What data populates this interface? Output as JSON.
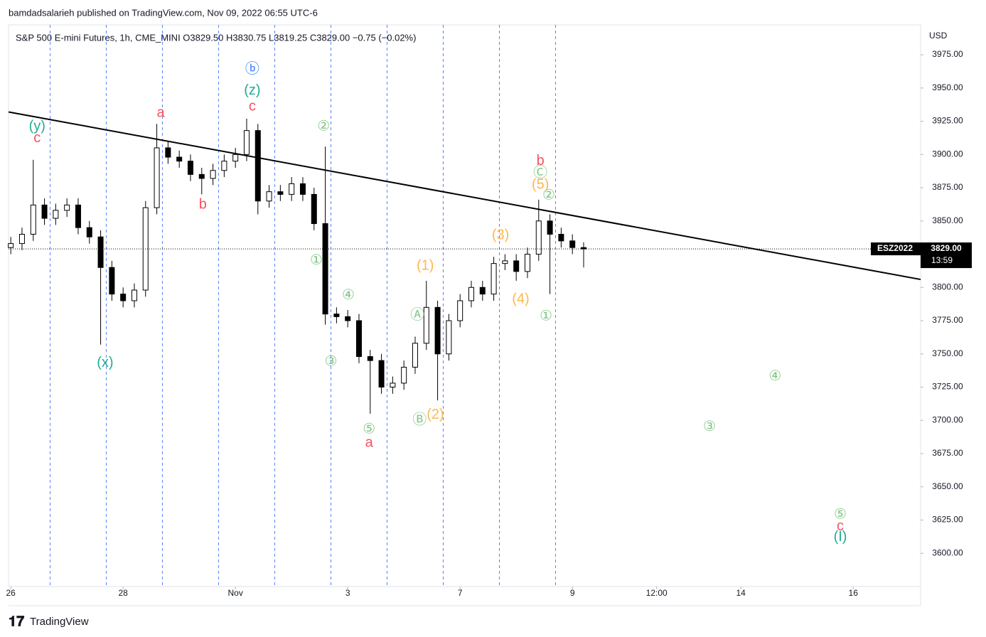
{
  "header": {
    "publisher": "bamdadsalarieh published on TradingView.com, Nov 09, 2022 06:55 UTC-6",
    "legend": "S&P 500 E-mini Futures, 1h, CME_MINI  O3829.50  H3830.75  L3819.25  C3829.00  −0.75 (−0.02%)",
    "currency": "USD"
  },
  "footer": {
    "brand": "TradingView"
  },
  "chart_data": {
    "type": "candlestick",
    "x": [
      0,
      0.2,
      0.4,
      0.6,
      0.8,
      1,
      1.2,
      1.4,
      1.6,
      1.8,
      2,
      2.2,
      2.4,
      2.6,
      2.8,
      3,
      3.2,
      3.4,
      3.6,
      3.8,
      4,
      4.2,
      4.4,
      4.6,
      4.8,
      5,
      5.2,
      5.4,
      5.6,
      5.8,
      6,
      6.2,
      6.4,
      6.6,
      6.8,
      7,
      7.2,
      7.4,
      7.6,
      7.8,
      8,
      8.2,
      8.4,
      8.6,
      8.8,
      9,
      9.2,
      9.4,
      9.6,
      9.8,
      10,
      10.2
    ],
    "open": [
      3830,
      3833,
      3840,
      3862,
      3852,
      3858,
      3862,
      3845,
      3838,
      3815,
      3795,
      3790,
      3798,
      3860,
      3905,
      3898,
      3895,
      3885,
      3882,
      3888,
      3895,
      3900,
      3918,
      3865,
      3872,
      3870,
      3878,
      3870,
      3848,
      3780,
      3778,
      3775,
      3748,
      3745,
      3725,
      3728,
      3740,
      3758,
      3785,
      3750,
      3775,
      3790,
      3800,
      3795,
      3818,
      3820,
      3812,
      3825,
      3850,
      3840,
      3835,
      3830
    ],
    "high": [
      3838,
      3845,
      3896,
      3867,
      3863,
      3867,
      3867,
      3850,
      3843,
      3820,
      3800,
      3803,
      3865,
      3923,
      3910,
      3903,
      3900,
      3890,
      3893,
      3900,
      3905,
      3927,
      3923,
      3877,
      3877,
      3883,
      3883,
      3875,
      3906,
      3785,
      3783,
      3780,
      3753,
      3750,
      3733,
      3745,
      3763,
      3805,
      3790,
      3780,
      3795,
      3805,
      3805,
      3823,
      3825,
      3825,
      3830,
      3866,
      3855,
      3845,
      3840,
      3834
    ],
    "low": [
      3825,
      3828,
      3835,
      3847,
      3847,
      3853,
      3840,
      3833,
      3757,
      3790,
      3785,
      3785,
      3793,
      3855,
      3893,
      3890,
      3880,
      3870,
      3877,
      3883,
      3890,
      3895,
      3855,
      3860,
      3865,
      3865,
      3865,
      3843,
      3772,
      3773,
      3770,
      3743,
      3705,
      3720,
      3720,
      3723,
      3735,
      3753,
      3715,
      3745,
      3770,
      3785,
      3790,
      3790,
      3813,
      3805,
      3807,
      3820,
      3795,
      3830,
      3825,
      3815
    ],
    "close": [
      3833,
      3840,
      3862,
      3852,
      3858,
      3862,
      3845,
      3838,
      3815,
      3795,
      3790,
      3798,
      3860,
      3905,
      3898,
      3895,
      3885,
      3882,
      3888,
      3895,
      3900,
      3918,
      3865,
      3872,
      3870,
      3878,
      3870,
      3848,
      3780,
      3778,
      3775,
      3748,
      3745,
      3725,
      3728,
      3740,
      3758,
      3785,
      3750,
      3775,
      3790,
      3800,
      3795,
      3818,
      3820,
      3812,
      3825,
      3850,
      3840,
      3835,
      3830,
      3829
    ],
    "xlim": [
      -0.04,
      16.2
    ],
    "xticks": [
      {
        "value": 0,
        "label": "26"
      },
      {
        "value": 2,
        "label": "28"
      },
      {
        "value": 4,
        "label": "Nov"
      },
      {
        "value": 6,
        "label": "3"
      },
      {
        "value": 8,
        "label": "7"
      },
      {
        "value": 10,
        "label": "9"
      },
      {
        "value": 11.5,
        "label": "12:00"
      },
      {
        "value": 13,
        "label": "14"
      },
      {
        "value": 15,
        "label": "16"
      }
    ],
    "ylim": [
      3575,
      3997.5
    ],
    "yticks": [
      {
        "value": 3600,
        "label": "3600.00"
      },
      {
        "value": 3625,
        "label": "3625.00"
      },
      {
        "value": 3650,
        "label": "3650.00"
      },
      {
        "value": 3675,
        "label": "3675.00"
      },
      {
        "value": 3700,
        "label": "3700.00"
      },
      {
        "value": 3725,
        "label": "3725.00"
      },
      {
        "value": 3750,
        "label": "3750.00"
      },
      {
        "value": 3775,
        "label": "3775.00"
      },
      {
        "value": 3800,
        "label": "3800.00"
      },
      {
        "value": 3825,
        "label": "3825.00"
      },
      {
        "value": 3850,
        "label": "3850.00"
      },
      {
        "value": 3875,
        "label": "3875.00"
      },
      {
        "value": 3900,
        "label": "3900.00"
      },
      {
        "value": 3925,
        "label": "3925.00"
      },
      {
        "value": 3950,
        "label": "3950.00"
      },
      {
        "value": 3975,
        "label": "3975.00"
      }
    ],
    "session_lines": [
      0.7,
      1.7,
      2.7,
      3.7,
      4.7,
      5.7,
      6.7,
      7.7,
      8.7,
      9.7
    ],
    "trendline": {
      "x": [
        -0.04,
        16.2
      ],
      "y": [
        3932,
        3806
      ]
    },
    "last_price": {
      "value": 3829,
      "label": "3829.00",
      "symbol": "ESZ2022",
      "countdown": "13:59"
    },
    "annotations": [
      {
        "text": "(y)",
        "x": 0.47,
        "y": 3921,
        "color": "#22ab94"
      },
      {
        "text": "c",
        "x": 0.47,
        "y": 3912,
        "color": "#f7525f"
      },
      {
        "text": "(x)",
        "x": 1.68,
        "y": 3743,
        "color": "#22ab94"
      },
      {
        "text": "a",
        "x": 2.67,
        "y": 3931,
        "color": "#f7525f"
      },
      {
        "text": "b",
        "x": 3.42,
        "y": 3862,
        "color": "#f7525f"
      },
      {
        "text": "ⓑ",
        "x": 4.3,
        "y": 3964,
        "color": "#2979ff"
      },
      {
        "text": "(z)",
        "x": 4.3,
        "y": 3948,
        "color": "#22ab94"
      },
      {
        "text": "c",
        "x": 4.3,
        "y": 3936,
        "color": "#f7525f"
      },
      {
        "text": "②",
        "x": 5.57,
        "y": 3921,
        "color": "#81c784"
      },
      {
        "text": "①",
        "x": 5.44,
        "y": 3820,
        "color": "#81c784"
      },
      {
        "text": "④",
        "x": 6.01,
        "y": 3794,
        "color": "#81c784"
      },
      {
        "text": "③",
        "x": 5.7,
        "y": 3744,
        "color": "#81c784"
      },
      {
        "text": "⑤",
        "x": 6.38,
        "y": 3693,
        "color": "#81c784"
      },
      {
        "text": "a",
        "x": 6.38,
        "y": 3683,
        "color": "#f7525f"
      },
      {
        "text": "(1)",
        "x": 7.38,
        "y": 3816,
        "color": "#ffb74d"
      },
      {
        "text": "Ⓐ",
        "x": 7.24,
        "y": 3779,
        "color": "#81c784"
      },
      {
        "text": "Ⓑ",
        "x": 7.28,
        "y": 3700,
        "color": "#81c784"
      },
      {
        "text": "(2)",
        "x": 7.56,
        "y": 3704,
        "color": "#ffb74d"
      },
      {
        "text": "(3)",
        "x": 8.72,
        "y": 3839,
        "color": "#ffb74d"
      },
      {
        "text": "(4)",
        "x": 9.08,
        "y": 3791,
        "color": "#ffb74d"
      },
      {
        "text": "b",
        "x": 9.43,
        "y": 3895,
        "color": "#f7525f"
      },
      {
        "text": "Ⓒ",
        "x": 9.43,
        "y": 3886,
        "color": "#81c784"
      },
      {
        "text": "(5)",
        "x": 9.43,
        "y": 3877,
        "color": "#ffb74d"
      },
      {
        "text": "②",
        "x": 9.58,
        "y": 3869,
        "color": "#81c784"
      },
      {
        "text": "①",
        "x": 9.53,
        "y": 3778,
        "color": "#81c784"
      },
      {
        "text": "④",
        "x": 13.61,
        "y": 3733,
        "color": "#81c784"
      },
      {
        "text": "③",
        "x": 12.44,
        "y": 3695,
        "color": "#81c784"
      },
      {
        "text": "⑤",
        "x": 14.77,
        "y": 3629,
        "color": "#81c784"
      },
      {
        "text": "c",
        "x": 14.77,
        "y": 3620,
        "color": "#f7525f"
      },
      {
        "text": "(I)",
        "x": 14.77,
        "y": 3612,
        "color": "#22ab94"
      }
    ]
  }
}
